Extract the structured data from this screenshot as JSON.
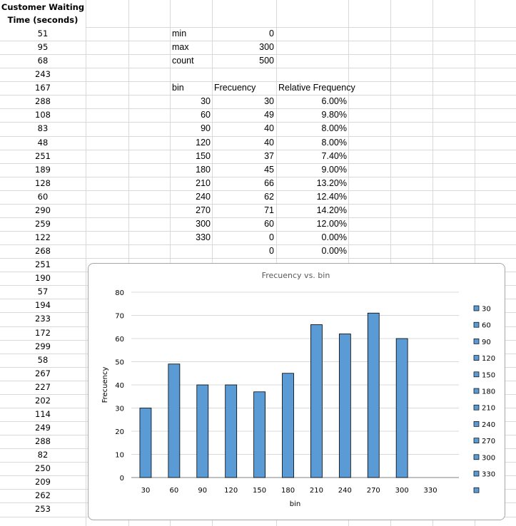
{
  "sheet": {
    "header_line1": "Customer Waiting",
    "header_line2": "Time (seconds)",
    "waiting_times": [
      "51",
      "95",
      "68",
      "243",
      "167",
      "288",
      "108",
      "83",
      "48",
      "251",
      "189",
      "128",
      "60",
      "290",
      "259",
      "122",
      "268",
      "251",
      "190",
      "57",
      "194",
      "233",
      "172",
      "299",
      "58",
      "267",
      "227",
      "202",
      "114",
      "249",
      "288",
      "82",
      "250",
      "209",
      "262",
      "253"
    ],
    "stats": [
      {
        "label": "min",
        "value": "0"
      },
      {
        "label": "max",
        "value": "300"
      },
      {
        "label": "count",
        "value": "500"
      }
    ],
    "table_headers": {
      "bin": "bin",
      "freq": "Frecuency",
      "rel": "Relative Frequency"
    },
    "table_rows": [
      {
        "bin": "30",
        "freq": "30",
        "rel": "6.00%"
      },
      {
        "bin": "60",
        "freq": "49",
        "rel": "9.80%"
      },
      {
        "bin": "90",
        "freq": "40",
        "rel": "8.00%"
      },
      {
        "bin": "120",
        "freq": "40",
        "rel": "8.00%"
      },
      {
        "bin": "150",
        "freq": "37",
        "rel": "7.40%"
      },
      {
        "bin": "180",
        "freq": "45",
        "rel": "9.00%"
      },
      {
        "bin": "210",
        "freq": "66",
        "rel": "13.20%"
      },
      {
        "bin": "240",
        "freq": "62",
        "rel": "12.40%"
      },
      {
        "bin": "270",
        "freq": "71",
        "rel": "14.20%"
      },
      {
        "bin": "300",
        "freq": "60",
        "rel": "12.00%"
      },
      {
        "bin": "330",
        "freq": "0",
        "rel": "0.00%"
      },
      {
        "bin": "",
        "freq": "0",
        "rel": "0.00%"
      }
    ]
  },
  "chart_data": {
    "type": "bar",
    "title": "Frecuency vs. bin",
    "xlabel": "bin",
    "ylabel": "Frecuency",
    "categories": [
      "30",
      "60",
      "90",
      "120",
      "150",
      "180",
      "210",
      "240",
      "270",
      "300",
      "330"
    ],
    "values": [
      30,
      49,
      40,
      40,
      37,
      45,
      66,
      62,
      71,
      60,
      0
    ],
    "ylim": [
      0,
      80
    ],
    "yticks": [
      "0",
      "10",
      "20",
      "30",
      "40",
      "50",
      "60",
      "70",
      "80"
    ],
    "grid": true,
    "legend_position": "right",
    "legend": [
      "30",
      "60",
      "90",
      "120",
      "150",
      "180",
      "210",
      "240",
      "270",
      "300",
      "330",
      ""
    ],
    "bar_color": "#5b9bd5"
  }
}
